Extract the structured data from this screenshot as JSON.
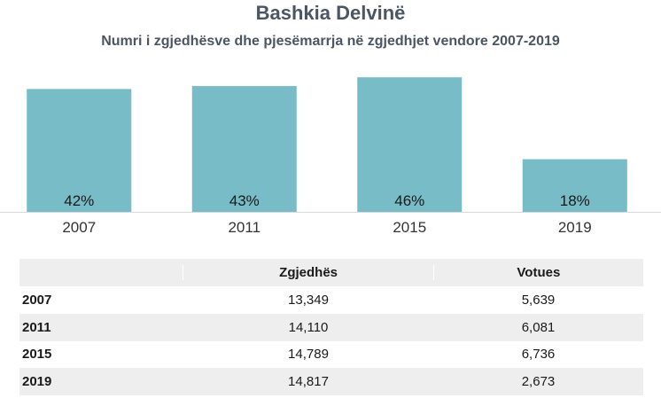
{
  "chart_data": {
    "type": "bar",
    "title": "Bashkia Delvinë",
    "subtitle": "Numri i zgjedhësve dhe pjesëmarrja në zgjedhjet vendore 2007-2019",
    "categories": [
      "2007",
      "2011",
      "2015",
      "2019"
    ],
    "values": [
      42,
      43,
      46,
      18
    ],
    "value_labels": [
      "42%",
      "43%",
      "46%",
      "18%"
    ],
    "ylim": [
      0,
      50
    ],
    "grid": false,
    "bar_color": "#77bcc6"
  },
  "table": {
    "headers": [
      "",
      "Zgjedhës",
      "Votues"
    ],
    "rows": [
      [
        "2007",
        "13,349",
        "5,639"
      ],
      [
        "2011",
        "14,110",
        "6,081"
      ],
      [
        "2015",
        "14,789",
        "6,736"
      ],
      [
        "2019",
        "14,817",
        "2,673"
      ]
    ]
  }
}
